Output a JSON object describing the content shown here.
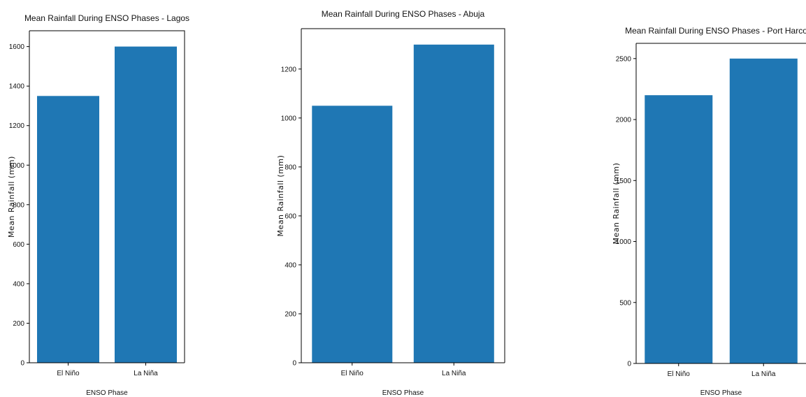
{
  "chart_data": [
    {
      "type": "bar",
      "title": "Mean Rainfall During ENSO Phases - Lagos",
      "xlabel": "ENSO Phase",
      "ylabel": "Mean Rainfall (mm)",
      "categories": [
        "El Niño",
        "La Niña"
      ],
      "values": [
        1350,
        1600
      ],
      "ylim": [
        0,
        1680
      ],
      "yticks": [
        0,
        200,
        400,
        600,
        800,
        1000,
        1200,
        1400,
        1600
      ],
      "bar_color": "#1f77b4",
      "grid": false
    },
    {
      "type": "bar",
      "title": "Mean Rainfall During ENSO Phases - Abuja",
      "xlabel": "ENSO Phase",
      "ylabel": "Mean Rainfall (mm)",
      "categories": [
        "El Niño",
        "La Niña"
      ],
      "values": [
        1050,
        1300
      ],
      "ylim": [
        0,
        1365
      ],
      "yticks": [
        0,
        200,
        400,
        600,
        800,
        1000,
        1200
      ],
      "bar_color": "#1f77b4",
      "grid": false
    },
    {
      "type": "bar",
      "title": "Mean Rainfall During ENSO Phases - Port Harcourt",
      "xlabel": "ENSO Phase",
      "ylabel": "Mean Rainfall (mm)",
      "categories": [
        "El Niño",
        "La Niña"
      ],
      "values": [
        2200,
        2500
      ],
      "ylim": [
        0,
        2625
      ],
      "yticks": [
        0,
        500,
        1000,
        1500,
        2000,
        2500
      ],
      "bar_color": "#1f77b4",
      "grid": false
    }
  ]
}
